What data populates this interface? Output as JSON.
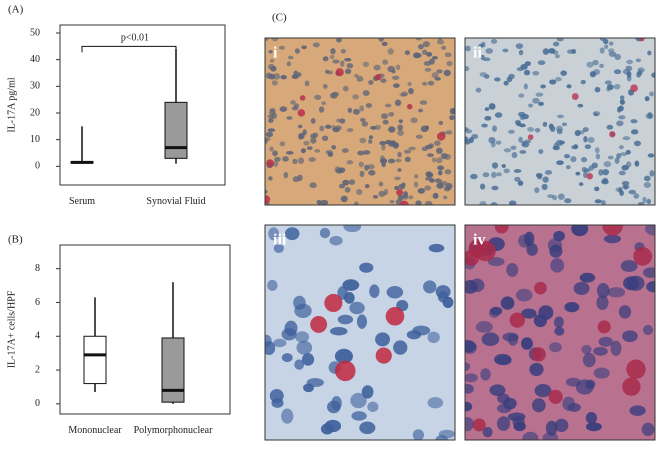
{
  "chart_data": [
    {
      "type": "box",
      "panel_label": "(A)",
      "y_label": "IL-17A pg/ml",
      "categories": [
        "Serum",
        "Synovial Fluid"
      ],
      "boxes": [
        {
          "min": 1,
          "q1": 1.2,
          "median": 1.5,
          "q3": 1.8,
          "max": 15,
          "color": "#9a9a9a"
        },
        {
          "min": 1,
          "q1": 3,
          "median": 7,
          "q3": 24,
          "max": 44,
          "color": "#9a9a9a"
        }
      ],
      "ylim": [
        -7,
        53
      ],
      "yticks": [
        0,
        10,
        20,
        30,
        40,
        50
      ],
      "annotation": "p<0.01",
      "annotation_y": 45
    },
    {
      "type": "box",
      "panel_label": "(B)",
      "y_label": "IL-17A+ cells/HPF",
      "categories": [
        "Mononuclear",
        "Polymorphonuclear"
      ],
      "boxes": [
        {
          "min": 0.7,
          "q1": 1.2,
          "median": 2.9,
          "q3": 4.0,
          "max": 6.3,
          "color": "#ffffff"
        },
        {
          "min": 0,
          "q1": 0.1,
          "median": 0.8,
          "q3": 3.9,
          "max": 7.2,
          "color": "#9a9a9a"
        }
      ],
      "ylim": [
        -0.6,
        9.4
      ],
      "yticks": [
        0,
        2,
        4,
        6,
        8
      ]
    }
  ],
  "panel_c": {
    "label": "(C)",
    "images": [
      "i",
      "ii",
      "iii",
      "iv"
    ]
  }
}
